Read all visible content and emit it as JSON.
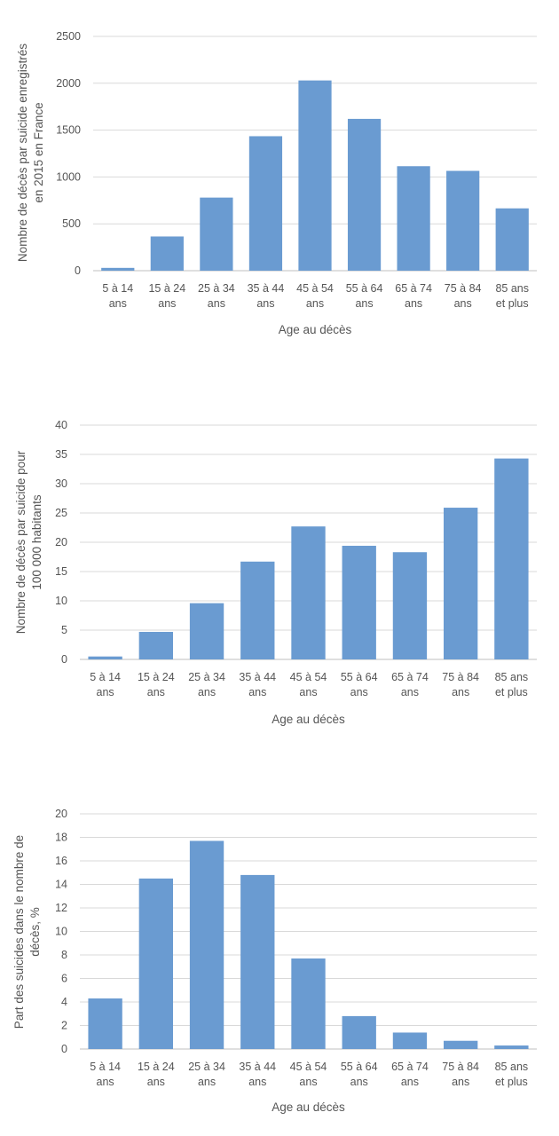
{
  "colors": {
    "bar": "#6a9bd1",
    "grid": "#d9d9d9",
    "axis": "#bfbfbf",
    "text": "#555555"
  },
  "chart_data": [
    {
      "type": "bar",
      "categories": [
        "5 à 14 ans",
        "15 à 24 ans",
        "25 à 34 ans",
        "35 à 44 ans",
        "45 à 54 ans",
        "55 à 64 ans",
        "65 à 74 ans",
        "75 à 84 ans",
        "85 ans et plus"
      ],
      "category_lines": [
        [
          "5 à 14",
          "ans"
        ],
        [
          "15 à 24",
          "ans"
        ],
        [
          "25 à 34",
          "ans"
        ],
        [
          "35 à 44",
          "ans"
        ],
        [
          "45 à 54",
          "ans"
        ],
        [
          "55 à 64",
          "ans"
        ],
        [
          "65 à 74",
          "ans"
        ],
        [
          "75 à 84",
          "ans"
        ],
        [
          "85 ans",
          "et plus"
        ]
      ],
      "values": [
        30,
        365,
        780,
        1435,
        2030,
        1620,
        1115,
        1065,
        665
      ],
      "ylim": [
        0,
        2500
      ],
      "yticks": [
        0,
        500,
        1000,
        1500,
        2000,
        2500
      ],
      "xlabel": "Age  au décès",
      "ylabel_lines": [
        "Nombre de décès par suicide enregistrés",
        "en 2015 en France"
      ],
      "grid": true
    },
    {
      "type": "bar",
      "categories": [
        "5 à 14 ans",
        "15 à 24 ans",
        "25 à 34 ans",
        "35 à 44 ans",
        "45 à 54 ans",
        "55 à 64 ans",
        "65 à 74 ans",
        "75 à 84 ans",
        "85 ans et plus"
      ],
      "category_lines": [
        [
          "5 à 14",
          "ans"
        ],
        [
          "15 à 24",
          "ans"
        ],
        [
          "25 à 34",
          "ans"
        ],
        [
          "35 à 44",
          "ans"
        ],
        [
          "45 à 54",
          "ans"
        ],
        [
          "55 à 64",
          "ans"
        ],
        [
          "65 à 74",
          "ans"
        ],
        [
          "75 à 84",
          "ans"
        ],
        [
          "85 ans",
          "et plus"
        ]
      ],
      "values": [
        0.5,
        4.7,
        9.6,
        16.7,
        22.7,
        19.4,
        18.3,
        25.9,
        34.3
      ],
      "ylim": [
        0,
        40
      ],
      "yticks": [
        0,
        5,
        10,
        15,
        20,
        25,
        30,
        35,
        40
      ],
      "xlabel": "Age  au décès",
      "ylabel_lines": [
        "Nombre de décès par suicide pour",
        "100 000  habitants"
      ],
      "grid": true
    },
    {
      "type": "bar",
      "categories": [
        "5 à 14 ans",
        "15 à 24 ans",
        "25 à 34 ans",
        "35 à 44 ans",
        "45 à 54 ans",
        "55 à 64 ans",
        "65 à 74 ans",
        "75 à 84 ans",
        "85 ans et plus"
      ],
      "category_lines": [
        [
          "5 à 14",
          "ans"
        ],
        [
          "15 à 24",
          "ans"
        ],
        [
          "25 à 34",
          "ans"
        ],
        [
          "35 à 44",
          "ans"
        ],
        [
          "45 à 54",
          "ans"
        ],
        [
          "55 à 64",
          "ans"
        ],
        [
          "65 à 74",
          "ans"
        ],
        [
          "75 à 84",
          "ans"
        ],
        [
          "85 ans",
          "et plus"
        ]
      ],
      "values": [
        4.3,
        14.5,
        17.7,
        14.8,
        7.7,
        2.8,
        1.4,
        0.7,
        0.3
      ],
      "ylim": [
        0,
        20
      ],
      "yticks": [
        0,
        2,
        4,
        6,
        8,
        10,
        12,
        14,
        16,
        18,
        20
      ],
      "xlabel": "Age  au décès",
      "ylabel_lines": [
        "Part des suicides dans le nombre de",
        "décès, %"
      ],
      "grid": true
    }
  ]
}
